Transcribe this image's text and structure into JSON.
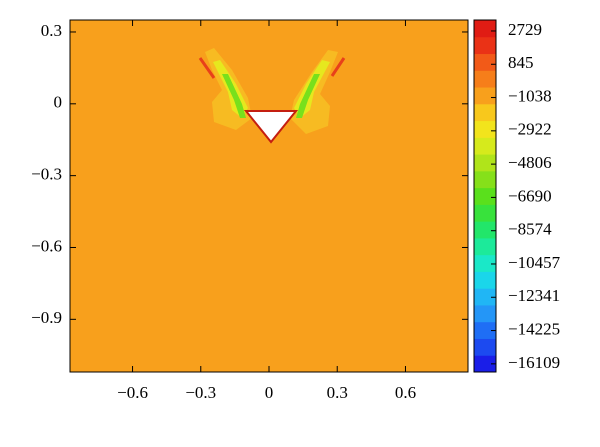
{
  "chart_data": {
    "type": "contour",
    "xlim": [
      -0.875,
      0.875
    ],
    "xticks": [
      {
        "value": -0.6,
        "label": "−0.6"
      },
      {
        "value": -0.3,
        "label": "−0.3"
      },
      0,
      0.3,
      0.6
    ],
    "ylim": [
      -1.12,
      0.35
    ],
    "yticks": [
      0.3,
      0,
      {
        "value": -0.3,
        "label": "−0.3"
      },
      {
        "value": -0.6,
        "label": "−0.6"
      },
      {
        "value": -0.9,
        "label": "−0.9"
      }
    ],
    "field_color": "#f8a01c",
    "colorbar": {
      "lim": [
        -16570,
        3350
      ],
      "ticks": [
        2729,
        845,
        {
          "value": -1038,
          "label": "−1038"
        },
        {
          "value": -2922,
          "label": "−2922"
        },
        {
          "value": -4806,
          "label": "−4806"
        },
        {
          "value": -6690,
          "label": "−6690"
        },
        {
          "value": -8574,
          "label": "−8574"
        },
        {
          "value": -10457,
          "label": "−10457"
        },
        {
          "value": -12341,
          "label": "−12341"
        },
        {
          "value": -14225,
          "label": "−14225"
        },
        {
          "value": -16109,
          "label": "−16109"
        }
      ],
      "colors": [
        "#1a1ee8",
        "#1c4af0",
        "#1f6ef5",
        "#2496f7",
        "#20b6f5",
        "#1ad6ea",
        "#1ae8c8",
        "#1cea9a",
        "#22e66a",
        "#38e23c",
        "#5ae01c",
        "#86e01a",
        "#b0e41a",
        "#d6ea1c",
        "#f2e41c",
        "#f8c81c",
        "#f8a01c",
        "#f67e1a",
        "#f25a18",
        "#ea3216",
        "#e01c14"
      ]
    }
  }
}
